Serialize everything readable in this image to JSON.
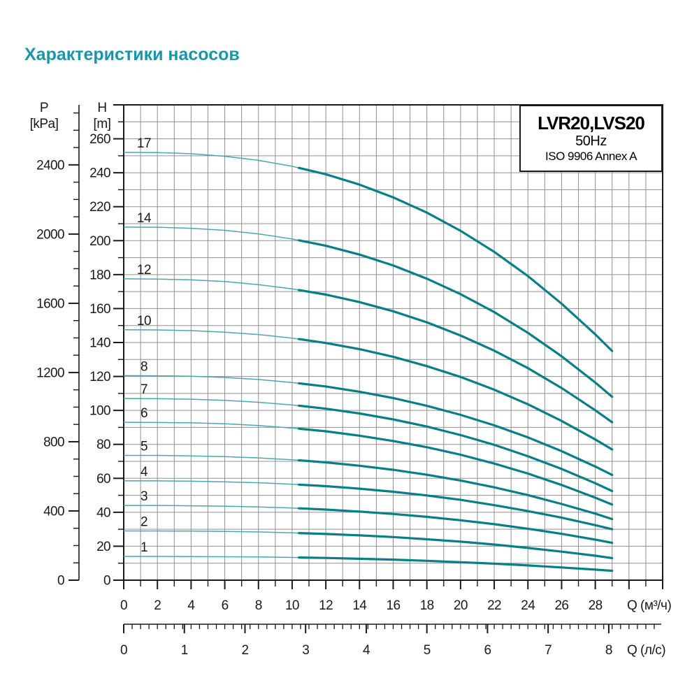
{
  "title": "Характеристики насосов",
  "legend": {
    "model": "LVR20,LVS20",
    "frequency": "50Hz",
    "standard": "ISO 9906 Annex A"
  },
  "axes": {
    "pressure": {
      "symbol": "P",
      "unit": "[kPa]",
      "labeled_ticks": [
        0,
        400,
        800,
        1200,
        1600,
        2000,
        2400
      ],
      "minor_step": 100,
      "max_tick": 2700
    },
    "head": {
      "symbol": "H",
      "unit": "[m]",
      "labeled_ticks": [
        0,
        20,
        40,
        60,
        80,
        100,
        120,
        140,
        160,
        180,
        200,
        220,
        240,
        260
      ],
      "minor_step": 10,
      "max_tick": 280
    },
    "flow_m3h": {
      "unit_label": "Q (м³/ч)",
      "labeled_ticks": [
        0,
        2,
        4,
        6,
        8,
        10,
        12,
        14,
        16,
        18,
        20,
        22,
        24,
        26,
        28
      ],
      "minor_step": 1,
      "max_tick": 32
    },
    "flow_ls": {
      "unit_label": "Q (л/с)",
      "labeled_ticks": [
        0,
        1,
        2,
        3,
        4,
        5,
        6,
        7,
        8
      ],
      "m3h_per_ls": 3.6,
      "minor_step_m3h": 0.5
    }
  },
  "chart_data": {
    "type": "line",
    "title": "LVR20,LVS20",
    "subtitle": "50Hz",
    "note": "ISO 9906 Annex A",
    "xlabel": "Q (м³/ч)",
    "x2label": "Q (л/с)",
    "ylabel": "H [m]",
    "y2label": "P [kPa]",
    "xlim": [
      0,
      32
    ],
    "ylim": [
      0,
      280
    ],
    "grid": true,
    "thick_segment_from_q": 10.4,
    "series": [
      {
        "name": "17",
        "points": [
          [
            0,
            252
          ],
          [
            2,
            251.9
          ],
          [
            4,
            251.2
          ],
          [
            6,
            249.7
          ],
          [
            8,
            247.3
          ],
          [
            10,
            243.8
          ],
          [
            12,
            239.1
          ],
          [
            14,
            233
          ],
          [
            16,
            225.5
          ],
          [
            18,
            216.5
          ],
          [
            20,
            205.8
          ],
          [
            22,
            193.4
          ],
          [
            24,
            179.1
          ],
          [
            26,
            162.9
          ],
          [
            28,
            144.8
          ],
          [
            29,
            135
          ]
        ]
      },
      {
        "name": "14",
        "points": [
          [
            0,
            208
          ],
          [
            2,
            207.9
          ],
          [
            4,
            207.3
          ],
          [
            6,
            206.1
          ],
          [
            8,
            204
          ],
          [
            10,
            201
          ],
          [
            12,
            197
          ],
          [
            14,
            191.8
          ],
          [
            16,
            185.4
          ],
          [
            18,
            177.6
          ],
          [
            20,
            168.5
          ],
          [
            22,
            157.9
          ],
          [
            24,
            145.7
          ],
          [
            26,
            131.9
          ],
          [
            28,
            116.4
          ],
          [
            29,
            108
          ]
        ]
      },
      {
        "name": "12",
        "points": [
          [
            0,
            177.5
          ],
          [
            2,
            177.4
          ],
          [
            4,
            176.9
          ],
          [
            6,
            175.9
          ],
          [
            8,
            174.1
          ],
          [
            10,
            171.6
          ],
          [
            12,
            168.2
          ],
          [
            14,
            163.8
          ],
          [
            16,
            158.4
          ],
          [
            18,
            151.9
          ],
          [
            20,
            144.1
          ],
          [
            22,
            135.2
          ],
          [
            24,
            124.9
          ],
          [
            26,
            113.2
          ],
          [
            28,
            100.1
          ],
          [
            29,
            93
          ]
        ]
      },
      {
        "name": "10",
        "points": [
          [
            0,
            147.5
          ],
          [
            2,
            147.4
          ],
          [
            4,
            147
          ],
          [
            6,
            146.1
          ],
          [
            8,
            144.7
          ],
          [
            10,
            142.6
          ],
          [
            12,
            139.7
          ],
          [
            14,
            136.1
          ],
          [
            16,
            131.6
          ],
          [
            18,
            126.1
          ],
          [
            20,
            119.7
          ],
          [
            22,
            112.2
          ],
          [
            24,
            103.6
          ],
          [
            26,
            93.8
          ],
          [
            28,
            82.9
          ],
          [
            29,
            77
          ]
        ]
      },
      {
        "name": "8",
        "points": [
          [
            0,
            120.5
          ],
          [
            2,
            120.4
          ],
          [
            4,
            120.1
          ],
          [
            6,
            119.4
          ],
          [
            8,
            118.2
          ],
          [
            10,
            116.4
          ],
          [
            12,
            114.1
          ],
          [
            14,
            111
          ],
          [
            16,
            107.3
          ],
          [
            18,
            102.7
          ],
          [
            20,
            97.4
          ],
          [
            22,
            91.2
          ],
          [
            24,
            84.1
          ],
          [
            26,
            76
          ],
          [
            28,
            66.9
          ],
          [
            29,
            62
          ]
        ]
      },
      {
        "name": "7",
        "points": [
          [
            0,
            107
          ],
          [
            2,
            106.9
          ],
          [
            4,
            106.6
          ],
          [
            6,
            105.9
          ],
          [
            8,
            104.8
          ],
          [
            10,
            103.2
          ],
          [
            12,
            101
          ],
          [
            14,
            98.2
          ],
          [
            16,
            94.7
          ],
          [
            18,
            90.5
          ],
          [
            20,
            85.5
          ],
          [
            22,
            79.7
          ],
          [
            24,
            73
          ],
          [
            26,
            65.5
          ],
          [
            28,
            57.1
          ],
          [
            29,
            52.5
          ]
        ]
      },
      {
        "name": "6",
        "points": [
          [
            0,
            93
          ],
          [
            2,
            92.9
          ],
          [
            4,
            92.7
          ],
          [
            6,
            92.1
          ],
          [
            8,
            91.1
          ],
          [
            10,
            89.6
          ],
          [
            12,
            87.7
          ],
          [
            14,
            85.1
          ],
          [
            16,
            82
          ],
          [
            18,
            78.3
          ],
          [
            20,
            73.9
          ],
          [
            22,
            68.7
          ],
          [
            24,
            62.8
          ],
          [
            26,
            56.1
          ],
          [
            28,
            48.6
          ],
          [
            29,
            44.5
          ]
        ]
      },
      {
        "name": "5",
        "points": [
          [
            0,
            73.5
          ],
          [
            2,
            73.5
          ],
          [
            4,
            73.2
          ],
          [
            6,
            72.8
          ],
          [
            8,
            72
          ],
          [
            10,
            70.9
          ],
          [
            12,
            69.4
          ],
          [
            14,
            67.4
          ],
          [
            16,
            65
          ],
          [
            18,
            62.1
          ],
          [
            20,
            58.7
          ],
          [
            22,
            54.7
          ],
          [
            24,
            50.1
          ],
          [
            26,
            44.9
          ],
          [
            28,
            39.2
          ],
          [
            29,
            36
          ]
        ]
      },
      {
        "name": "4",
        "points": [
          [
            0,
            58.5
          ],
          [
            2,
            58.5
          ],
          [
            4,
            58.3
          ],
          [
            6,
            57.9
          ],
          [
            8,
            57.4
          ],
          [
            10,
            56.5
          ],
          [
            12,
            55.4
          ],
          [
            14,
            53.9
          ],
          [
            16,
            52.1
          ],
          [
            18,
            49.9
          ],
          [
            20,
            47.3
          ],
          [
            22,
            44.2
          ],
          [
            24,
            40.7
          ],
          [
            26,
            36.8
          ],
          [
            28,
            32.4
          ],
          [
            29,
            30
          ]
        ]
      },
      {
        "name": "3",
        "points": [
          [
            0,
            44
          ],
          [
            2,
            44
          ],
          [
            4,
            43.8
          ],
          [
            6,
            43.6
          ],
          [
            8,
            43.1
          ],
          [
            10,
            42.5
          ],
          [
            12,
            41.6
          ],
          [
            14,
            40.4
          ],
          [
            16,
            39
          ],
          [
            18,
            37.3
          ],
          [
            20,
            35.3
          ],
          [
            22,
            33
          ],
          [
            24,
            30.3
          ],
          [
            26,
            27.3
          ],
          [
            28,
            23.9
          ],
          [
            29,
            22
          ]
        ]
      },
      {
        "name": "2",
        "points": [
          [
            0,
            29
          ],
          [
            2,
            29
          ],
          [
            4,
            28.9
          ],
          [
            6,
            28.7
          ],
          [
            8,
            28.4
          ],
          [
            10,
            27.9
          ],
          [
            12,
            27.2
          ],
          [
            14,
            26.4
          ],
          [
            16,
            25.4
          ],
          [
            18,
            24.1
          ],
          [
            20,
            22.7
          ],
          [
            22,
            21
          ],
          [
            24,
            19
          ],
          [
            26,
            16.8
          ],
          [
            28,
            14.4
          ],
          [
            29,
            13
          ]
        ]
      },
      {
        "name": "1",
        "points": [
          [
            0,
            14
          ],
          [
            2,
            14
          ],
          [
            4,
            13.9
          ],
          [
            6,
            13.8
          ],
          [
            8,
            13.7
          ],
          [
            10,
            13.4
          ],
          [
            12,
            13.1
          ],
          [
            14,
            12.6
          ],
          [
            16,
            12.1
          ],
          [
            18,
            11.4
          ],
          [
            20,
            10.6
          ],
          [
            22,
            9.7
          ],
          [
            24,
            8.7
          ],
          [
            26,
            7.5
          ],
          [
            28,
            6.2
          ],
          [
            29,
            5.5
          ]
        ]
      }
    ]
  },
  "colors": {
    "accent_title": "#1a96ab",
    "curve_thick": "#087f86",
    "curve_thin": "#4aa8ae",
    "grid": "#909090",
    "axis": "#1a1a1a"
  }
}
